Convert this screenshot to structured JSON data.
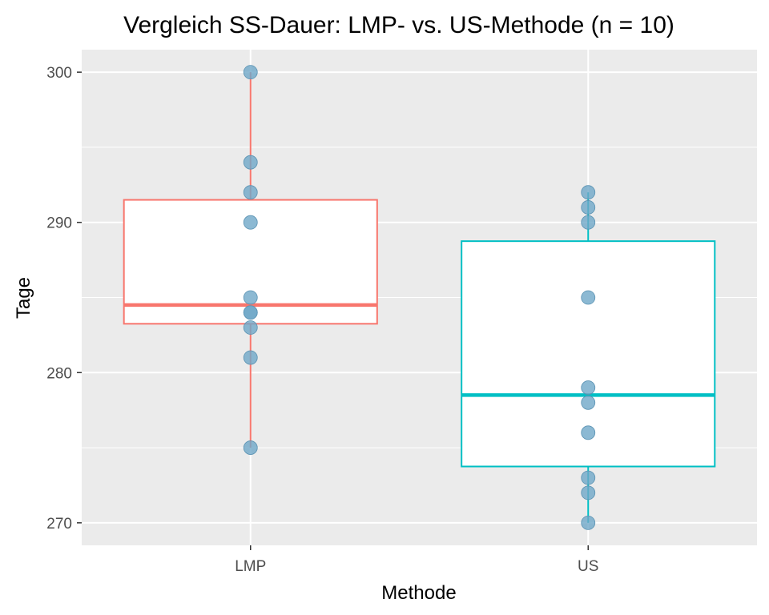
{
  "chart_data": {
    "type": "boxplot",
    "title": "Vergleich SS-Dauer: LMP- vs. US-Methode (n = 10)",
    "xlabel": "Methode",
    "ylabel": "Tage",
    "categories": [
      "LMP",
      "US"
    ],
    "ylim": [
      268.5,
      301.5
    ],
    "yticks": [
      270,
      280,
      290,
      300
    ],
    "grid": true,
    "series": [
      {
        "category": "LMP",
        "color": "#f8766d",
        "points": [
          300,
          294,
          292,
          290,
          285,
          284,
          284,
          283,
          281,
          275
        ],
        "box": {
          "min": 275,
          "q1": 283.25,
          "median": 284.5,
          "q3": 291.5,
          "max": 300
        }
      },
      {
        "category": "US",
        "color": "#00bfc4",
        "points": [
          292,
          291,
          290,
          285,
          279,
          278,
          276,
          273,
          272,
          270
        ],
        "box": {
          "min": 270,
          "q1": 273.75,
          "median": 278.5,
          "q3": 288.75,
          "max": 292
        }
      }
    ],
    "point_color": "#6fa8c8",
    "panel_color": "#ebebeb",
    "grid_color": "#ffffff"
  }
}
